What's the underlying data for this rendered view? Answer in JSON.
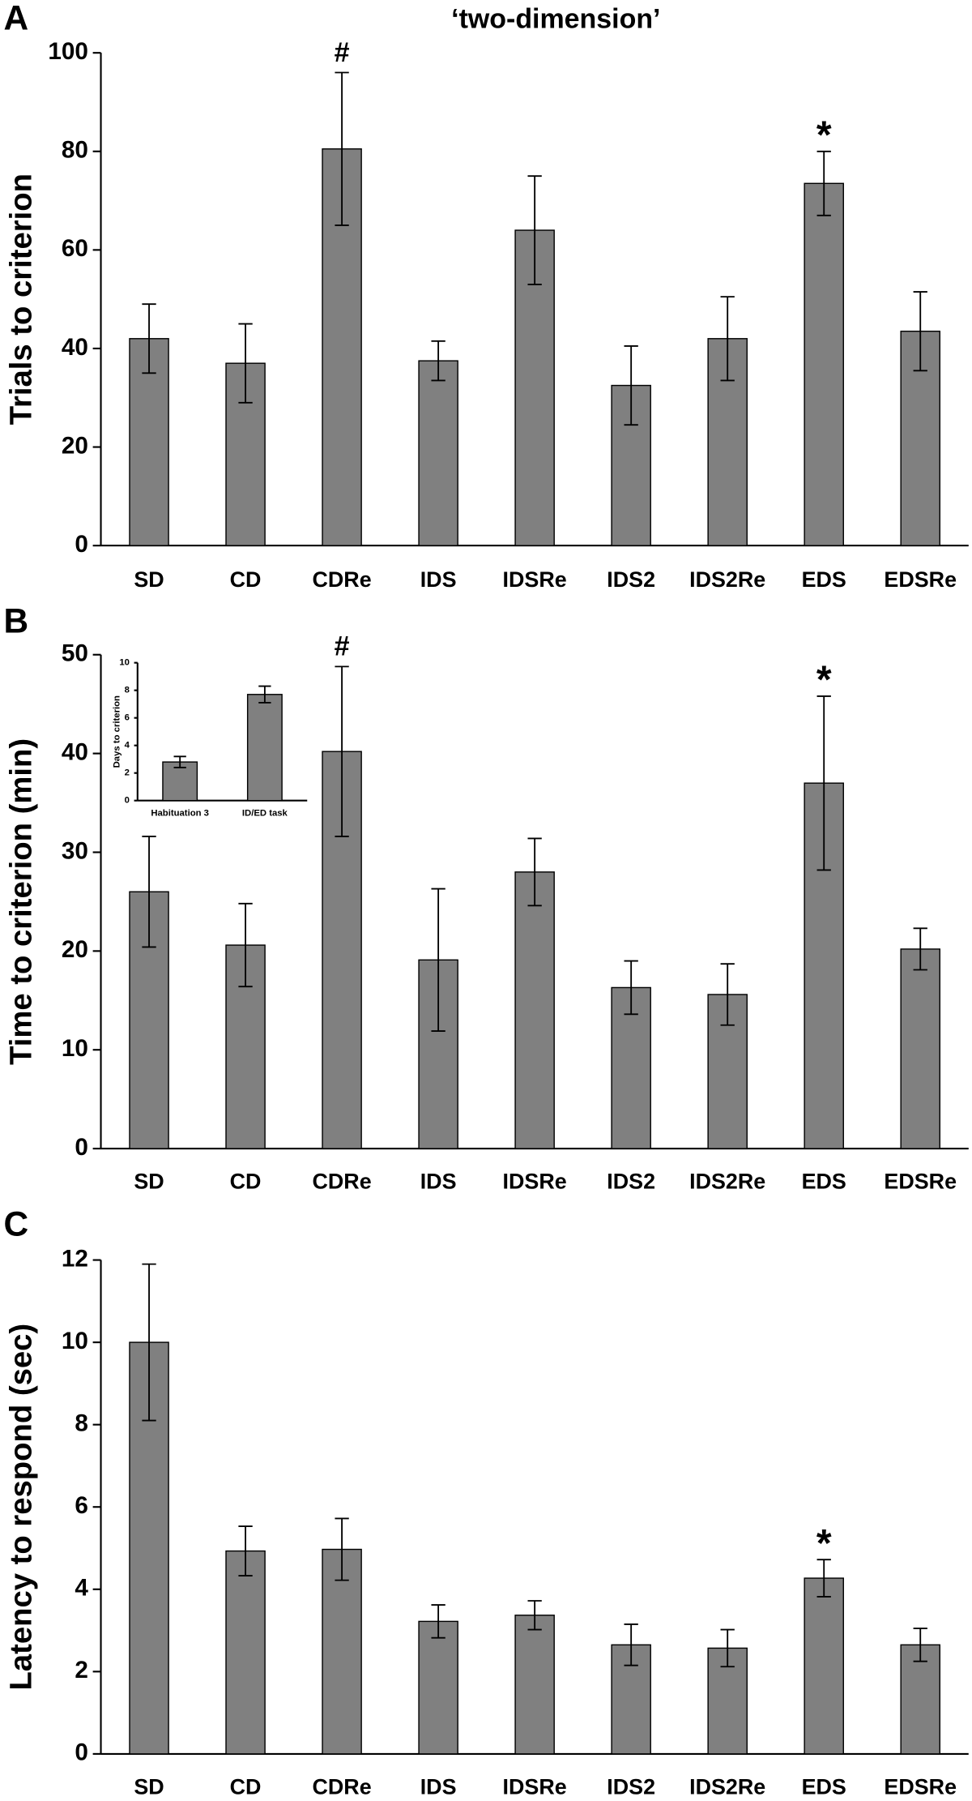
{
  "chart_data": [
    {
      "type": "bar",
      "panel_label": "A",
      "title": "‘two-dimension’",
      "y_label": "Trials to criterion",
      "categories": [
        "SD",
        "CD",
        "CDRe",
        "IDS",
        "IDSRe",
        "IDS2",
        "IDS2Re",
        "EDS",
        "EDSRe"
      ],
      "values": [
        42,
        37,
        80.5,
        37.5,
        64,
        32.5,
        42,
        73.5,
        43.5
      ],
      "errors": [
        7,
        8,
        15.5,
        4,
        11,
        8,
        8.5,
        6.5,
        8
      ],
      "annotations": [
        null,
        null,
        "#",
        null,
        null,
        null,
        null,
        "*",
        null
      ],
      "color": "#808080",
      "ylim": [
        0,
        100
      ],
      "yticks": [
        0,
        20,
        40,
        60,
        80,
        100
      ]
    },
    {
      "type": "bar",
      "panel_label": "B",
      "y_label": "Time to criterion (min)",
      "categories": [
        "SD",
        "CD",
        "CDRe",
        "IDS",
        "IDSRe",
        "IDS2",
        "IDS2Re",
        "EDS",
        "EDSRe"
      ],
      "values": [
        26,
        20.6,
        40.2,
        19.1,
        28,
        16.3,
        15.6,
        37,
        20.2
      ],
      "errors": [
        5.6,
        4.2,
        8.6,
        7.2,
        3.4,
        2.7,
        3.1,
        8.8,
        2.1
      ],
      "annotations": [
        null,
        null,
        "#",
        null,
        null,
        null,
        null,
        "*",
        null
      ],
      "color": "#808080",
      "ylim": [
        0,
        50
      ],
      "yticks": [
        0,
        10,
        20,
        30,
        40,
        50
      ]
    },
    {
      "type": "bar",
      "y_label": "Days to criterion",
      "categories": [
        "Habituation 3",
        "ID/ED task"
      ],
      "values": [
        2.8,
        7.7
      ],
      "errors": [
        0.4,
        0.6
      ],
      "color": "#808080",
      "ylim": [
        0,
        10
      ],
      "yticks": [
        0,
        2,
        4,
        6,
        8,
        10
      ]
    },
    {
      "type": "bar",
      "panel_label": "C",
      "y_label": "Latency to respond (sec)",
      "categories": [
        "SD",
        "CD",
        "CDRe",
        "IDS",
        "IDSRe",
        "IDS2",
        "IDS2Re",
        "EDS",
        "EDSRe"
      ],
      "values": [
        10,
        4.93,
        4.97,
        3.22,
        3.37,
        2.65,
        2.57,
        4.27,
        2.65
      ],
      "errors": [
        1.9,
        0.6,
        0.75,
        0.4,
        0.35,
        0.5,
        0.45,
        0.45,
        0.4
      ],
      "annotations": [
        null,
        null,
        null,
        null,
        null,
        null,
        null,
        "*",
        null
      ],
      "color": "#808080",
      "ylim": [
        0,
        12
      ],
      "yticks": [
        0,
        2,
        4,
        6,
        8,
        10,
        12
      ]
    }
  ]
}
